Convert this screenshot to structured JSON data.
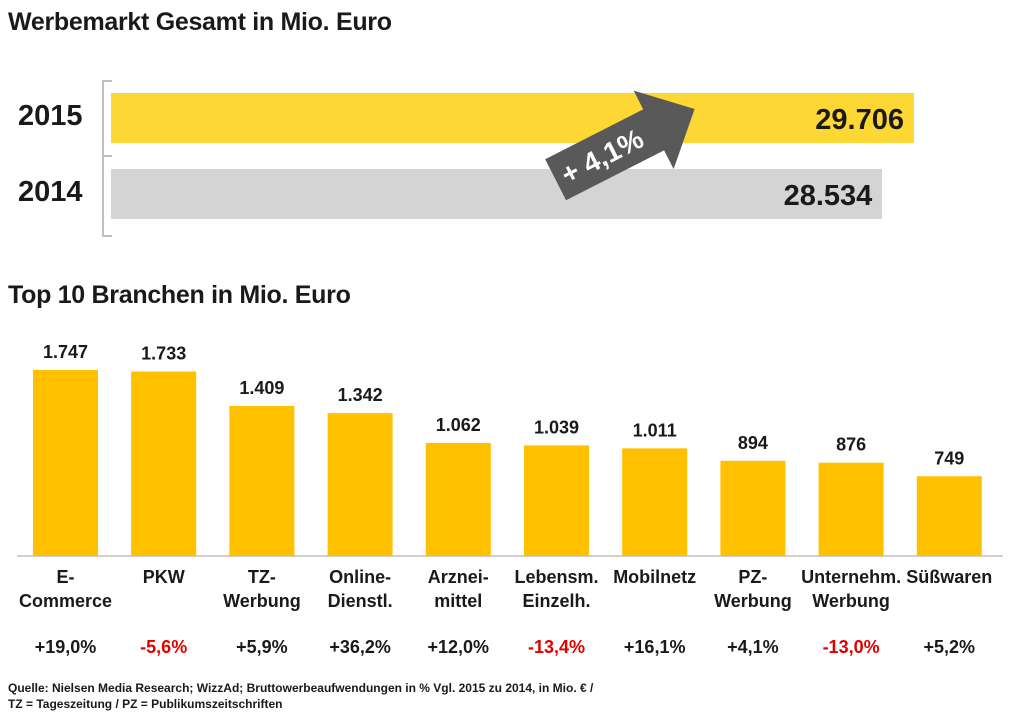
{
  "top_chart": {
    "title": "Werbemarkt Gesamt in Mio. Euro",
    "rows": [
      {
        "year": "2015",
        "value": 29706,
        "label": "29.706",
        "color": "#fdd835"
      },
      {
        "year": "2014",
        "value": 28534,
        "label": "28.534",
        "color": "#d4d4d4"
      }
    ],
    "growth_label": "+ 4,1%",
    "arrow_color": "#595959"
  },
  "chart_data": {
    "type": "bar",
    "title": "Top 10 Branchen in Mio. Euro",
    "categories": [
      "E-\nCommerce",
      "PKW",
      "TZ-\nWerbung",
      "Online-\nDienstl.",
      "Arznei-\nmittel",
      "Lebensm.\nEinzelh.",
      "Mobilnetz",
      "PZ-\nWerbung",
      "Unternehm.\nWerbung",
      "Süßwaren"
    ],
    "values": [
      1747,
      1733,
      1409,
      1342,
      1062,
      1039,
      1011,
      894,
      876,
      749
    ],
    "value_labels": [
      "1.747",
      "1.733",
      "1.409",
      "1.342",
      "1.062",
      "1.039",
      "1.011",
      "894",
      "876",
      "749"
    ],
    "changes": [
      "+19,0%",
      "-5,6%",
      "+5,9%",
      "+36,2%",
      "+12,0%",
      "-13,4%",
      "+16,1%",
      "+4,1%",
      "-13,0%",
      "+5,2%"
    ],
    "bar_color": "#ffc000",
    "negative_color": "#e00000",
    "positive_color": "#1a1a1a",
    "ylim": [
      0,
      1747
    ]
  },
  "footer": {
    "line1": "Quelle: Nielsen Media Research; WizzAd; Bruttowerbeaufwendungen in % Vgl. 2015 zu 2014, in Mio. € /",
    "line2": "TZ = Tageszeitung / PZ = Publikumszeitschriften"
  }
}
